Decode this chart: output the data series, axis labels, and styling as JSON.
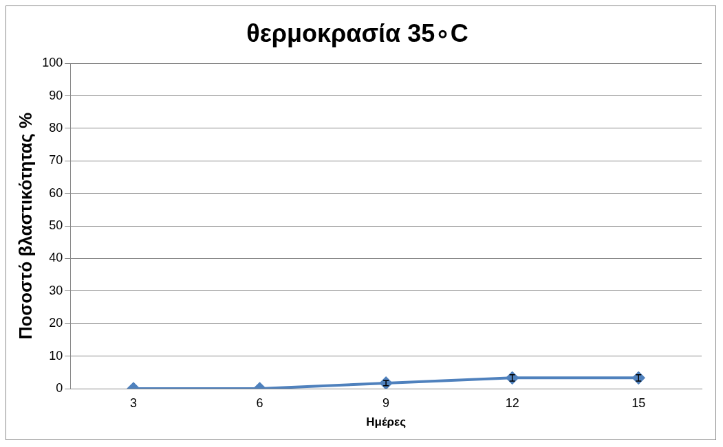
{
  "chart_data": {
    "type": "line",
    "title": "θερμοκρασία 35∘C",
    "xlabel": "Ημέρες",
    "ylabel": "Ποσοστό βλαστικότητας %",
    "categories": [
      "3",
      "6",
      "9",
      "12",
      "15"
    ],
    "series": [
      {
        "color": "#4f81bd",
        "values": [
          0,
          0,
          1.7,
          3.3,
          3.3
        ],
        "errors": [
          null,
          null,
          0.8,
          1,
          1
        ]
      }
    ],
    "ylim": [
      0,
      100
    ],
    "yticks": [
      0,
      10,
      20,
      30,
      40,
      50,
      60,
      70,
      80,
      90,
      100
    ],
    "grid": "y",
    "legend": false,
    "marker": "diamond",
    "line_style": "solid"
  }
}
